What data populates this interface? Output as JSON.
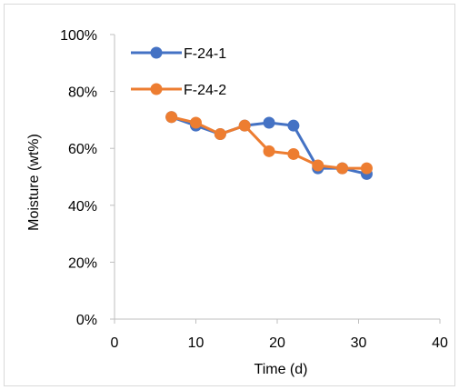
{
  "chart_data": {
    "type": "line",
    "title": "",
    "xlabel": "Time (d)",
    "ylabel": "Moisture (wt%)",
    "xlim": [
      0,
      40
    ],
    "ylim": [
      0,
      100
    ],
    "x_ticks": [
      0,
      10,
      20,
      30,
      40
    ],
    "y_ticks": [
      0,
      20,
      40,
      60,
      80,
      100
    ],
    "x_tick_labels": [
      "0",
      "10",
      "20",
      "30",
      "40"
    ],
    "y_tick_labels": [
      "0%",
      "20%",
      "40%",
      "60%",
      "80%",
      "100%"
    ],
    "grid": false,
    "legend_position": "top-left",
    "series": [
      {
        "name": "F-24-1",
        "color": "#4472C4",
        "x": [
          7,
          10,
          13,
          16,
          19,
          22,
          25,
          28,
          31
        ],
        "y": [
          71,
          68,
          65,
          68,
          69,
          68,
          53,
          53,
          51
        ]
      },
      {
        "name": "F-24-2",
        "color": "#ED7D31",
        "x": [
          7,
          10,
          13,
          16,
          19,
          22,
          25,
          28,
          31
        ],
        "y": [
          71,
          69,
          65,
          68,
          59,
          58,
          54,
          53,
          53
        ]
      }
    ]
  }
}
